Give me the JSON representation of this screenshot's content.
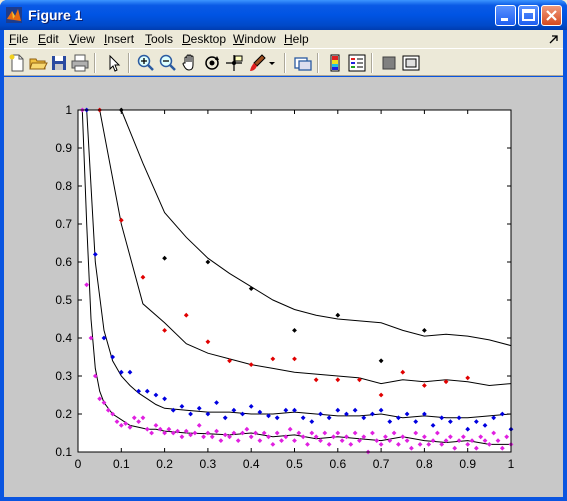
{
  "window": {
    "title": "Figure 1"
  },
  "menu": [
    {
      "label": "File",
      "underline": "F",
      "rest": "ile"
    },
    {
      "label": "Edit",
      "underline": "E",
      "rest": "dit"
    },
    {
      "label": "View",
      "underline": "V",
      "rest": "iew"
    },
    {
      "label": "Insert",
      "underline": "I",
      "rest": "nsert"
    },
    {
      "label": "Tools",
      "underline": "T",
      "rest": "ools"
    },
    {
      "label": "Desktop",
      "underline": "D",
      "rest": "esktop"
    },
    {
      "label": "Window",
      "underline": "W",
      "rest": "indow"
    },
    {
      "label": "Help",
      "underline": "H",
      "rest": "elp"
    }
  ],
  "toolbar_icons": [
    "new-figure-icon",
    "open-file-icon",
    "save-icon",
    "print-icon",
    "select-arrow-icon",
    "zoom-in-icon",
    "zoom-out-icon",
    "pan-hand-icon",
    "rotate-3d-icon",
    "data-cursor-icon",
    "brush-icon",
    "brush-dropdown-icon",
    "link-plot-icon",
    "colorbar-icon",
    "legend-icon",
    "hide-plot-tools-icon",
    "show-plot-tools-icon"
  ],
  "colors": {
    "titlebar": "#0054e3",
    "figure_bg": "#c8c8c8",
    "axes_bg": "#ffffff",
    "black": "#000000",
    "red": "#e00000",
    "blue": "#0000e0",
    "magenta": "#e020e0"
  },
  "chart_data": {
    "type": "scatter",
    "xlim": [
      0,
      1
    ],
    "ylim": [
      0.1,
      1
    ],
    "xticks": [
      "0",
      "0.1",
      "0.2",
      "0.3",
      "0.4",
      "0.5",
      "0.6",
      "0.7",
      "0.8",
      "0.9",
      "1"
    ],
    "yticks": [
      "0.1",
      "0.2",
      "0.3",
      "0.4",
      "0.5",
      "0.6",
      "0.7",
      "0.8",
      "0.9",
      "1"
    ],
    "grid": false,
    "lines": [
      {
        "color": "#000000",
        "x": [
          0.1,
          0.15,
          0.2,
          0.25,
          0.3,
          0.35,
          0.4,
          0.45,
          0.5,
          0.55,
          0.6,
          0.65,
          0.7,
          0.75,
          0.8,
          0.85,
          0.9,
          0.95,
          1.0
        ],
        "y": [
          1.0,
          0.86,
          0.73,
          0.665,
          0.61,
          0.57,
          0.535,
          0.5,
          0.475,
          0.46,
          0.45,
          0.445,
          0.44,
          0.42,
          0.405,
          0.41,
          0.405,
          0.395,
          0.38
        ]
      },
      {
        "color": "#000000",
        "x": [
          0.05,
          0.1,
          0.15,
          0.2,
          0.25,
          0.3,
          0.35,
          0.4,
          0.45,
          0.5,
          0.55,
          0.6,
          0.65,
          0.7,
          0.75,
          0.8,
          0.85,
          0.9,
          0.95,
          1.0
        ],
        "y": [
          1.0,
          0.7,
          0.49,
          0.44,
          0.385,
          0.36,
          0.345,
          0.33,
          0.32,
          0.31,
          0.305,
          0.3,
          0.295,
          0.28,
          0.29,
          0.285,
          0.29,
          0.285,
          0.275,
          0.28
        ]
      },
      {
        "color": "#000000",
        "x": [
          0.02,
          0.04,
          0.06,
          0.08,
          0.1,
          0.12,
          0.14,
          0.16,
          0.18,
          0.2,
          0.25,
          0.3,
          0.35,
          0.4,
          0.45,
          0.5,
          0.55,
          0.6,
          0.65,
          0.7,
          0.75,
          0.8,
          0.85,
          0.9,
          0.95,
          1.0
        ],
        "y": [
          1.0,
          0.6,
          0.42,
          0.34,
          0.3,
          0.275,
          0.255,
          0.24,
          0.225,
          0.215,
          0.21,
          0.205,
          0.205,
          0.2,
          0.2,
          0.205,
          0.2,
          0.195,
          0.195,
          0.2,
          0.19,
          0.195,
          0.19,
          0.19,
          0.195,
          0.2
        ]
      },
      {
        "color": "#000000",
        "x": [
          0.01,
          0.02,
          0.03,
          0.04,
          0.05,
          0.06,
          0.08,
          0.1,
          0.12,
          0.14,
          0.16,
          0.18,
          0.2,
          0.25,
          0.3,
          0.35,
          0.4,
          0.45,
          0.5,
          0.55,
          0.6,
          0.65,
          0.7,
          0.75,
          0.8,
          0.85,
          0.9,
          0.95,
          1.0
        ],
        "y": [
          1.0,
          0.7,
          0.45,
          0.32,
          0.26,
          0.23,
          0.2,
          0.185,
          0.17,
          0.165,
          0.16,
          0.16,
          0.155,
          0.15,
          0.148,
          0.145,
          0.15,
          0.14,
          0.145,
          0.135,
          0.14,
          0.135,
          0.13,
          0.14,
          0.13,
          0.125,
          0.13,
          0.12,
          0.12
        ]
      }
    ],
    "series": [
      {
        "color": "#000000",
        "x": [
          0.1,
          0.2,
          0.3,
          0.4,
          0.5,
          0.6,
          0.7,
          0.8
        ],
        "y": [
          1.0,
          0.61,
          0.6,
          0.53,
          0.42,
          0.46,
          0.34,
          0.42
        ]
      },
      {
        "color": "#e00000",
        "x": [
          0.05,
          0.1,
          0.15,
          0.2,
          0.25,
          0.3,
          0.35,
          0.4,
          0.45,
          0.5,
          0.55,
          0.6,
          0.65,
          0.7,
          0.75,
          0.8,
          0.85,
          0.9
        ],
        "y": [
          1.0,
          0.71,
          0.56,
          0.42,
          0.46,
          0.39,
          0.34,
          0.33,
          0.345,
          0.345,
          0.29,
          0.29,
          0.29,
          0.25,
          0.31,
          0.275,
          0.285,
          0.295
        ]
      },
      {
        "color": "#0000e0",
        "x": [
          0.02,
          0.04,
          0.06,
          0.08,
          0.1,
          0.12,
          0.14,
          0.16,
          0.18,
          0.2,
          0.22,
          0.24,
          0.26,
          0.28,
          0.3,
          0.32,
          0.34,
          0.36,
          0.38,
          0.4,
          0.42,
          0.44,
          0.46,
          0.48,
          0.5,
          0.52,
          0.54,
          0.56,
          0.58,
          0.6,
          0.62,
          0.64,
          0.66,
          0.68,
          0.7,
          0.72,
          0.74,
          0.76,
          0.78,
          0.8,
          0.82,
          0.84,
          0.86,
          0.88,
          0.9,
          0.92,
          0.94,
          0.96,
          0.98,
          1.0
        ],
        "y": [
          1.0,
          0.62,
          0.4,
          0.35,
          0.31,
          0.31,
          0.26,
          0.26,
          0.25,
          0.24,
          0.21,
          0.22,
          0.2,
          0.215,
          0.2,
          0.23,
          0.19,
          0.21,
          0.2,
          0.22,
          0.205,
          0.195,
          0.19,
          0.21,
          0.21,
          0.19,
          0.18,
          0.2,
          0.19,
          0.21,
          0.2,
          0.21,
          0.19,
          0.2,
          0.21,
          0.18,
          0.19,
          0.2,
          0.18,
          0.2,
          0.17,
          0.19,
          0.18,
          0.19,
          0.16,
          0.18,
          0.17,
          0.19,
          0.2,
          0.16
        ]
      },
      {
        "color": "#e020e0",
        "x": [
          0.01,
          0.02,
          0.03,
          0.04,
          0.05,
          0.06,
          0.07,
          0.08,
          0.09,
          0.1,
          0.11,
          0.12,
          0.13,
          0.14,
          0.15,
          0.16,
          0.17,
          0.18,
          0.19,
          0.2,
          0.21,
          0.22,
          0.23,
          0.24,
          0.25,
          0.26,
          0.27,
          0.28,
          0.29,
          0.3,
          0.31,
          0.32,
          0.33,
          0.34,
          0.35,
          0.36,
          0.37,
          0.38,
          0.39,
          0.4,
          0.41,
          0.42,
          0.43,
          0.44,
          0.45,
          0.46,
          0.47,
          0.48,
          0.49,
          0.5,
          0.51,
          0.52,
          0.53,
          0.54,
          0.55,
          0.56,
          0.57,
          0.58,
          0.59,
          0.6,
          0.61,
          0.62,
          0.63,
          0.64,
          0.65,
          0.66,
          0.67,
          0.68,
          0.69,
          0.7,
          0.71,
          0.72,
          0.73,
          0.74,
          0.75,
          0.76,
          0.77,
          0.78,
          0.79,
          0.8,
          0.81,
          0.82,
          0.83,
          0.84,
          0.85,
          0.86,
          0.87,
          0.88,
          0.89,
          0.9,
          0.91,
          0.92,
          0.93,
          0.94,
          0.95,
          0.96,
          0.97,
          0.98,
          0.99,
          1.0
        ],
        "y": [
          1.0,
          0.54,
          0.4,
          0.3,
          0.24,
          0.23,
          0.21,
          0.2,
          0.18,
          0.17,
          0.175,
          0.165,
          0.19,
          0.18,
          0.19,
          0.16,
          0.15,
          0.17,
          0.16,
          0.15,
          0.16,
          0.15,
          0.155,
          0.14,
          0.155,
          0.145,
          0.15,
          0.17,
          0.14,
          0.15,
          0.14,
          0.155,
          0.13,
          0.145,
          0.14,
          0.15,
          0.13,
          0.15,
          0.16,
          0.14,
          0.15,
          0.13,
          0.15,
          0.14,
          0.12,
          0.15,
          0.13,
          0.14,
          0.16,
          0.13,
          0.15,
          0.14,
          0.12,
          0.15,
          0.14,
          0.13,
          0.15,
          0.12,
          0.14,
          0.15,
          0.13,
          0.14,
          0.12,
          0.15,
          0.13,
          0.14,
          0.1,
          0.15,
          0.13,
          0.12,
          0.14,
          0.13,
          0.15,
          0.12,
          0.14,
          0.13,
          0.11,
          0.15,
          0.12,
          0.14,
          0.12,
          0.13,
          0.15,
          0.12,
          0.13,
          0.14,
          0.11,
          0.13,
          0.14,
          0.12,
          0.13,
          0.11,
          0.14,
          0.13,
          0.12,
          0.15,
          0.13,
          0.11,
          0.14,
          0.12
        ]
      }
    ]
  }
}
